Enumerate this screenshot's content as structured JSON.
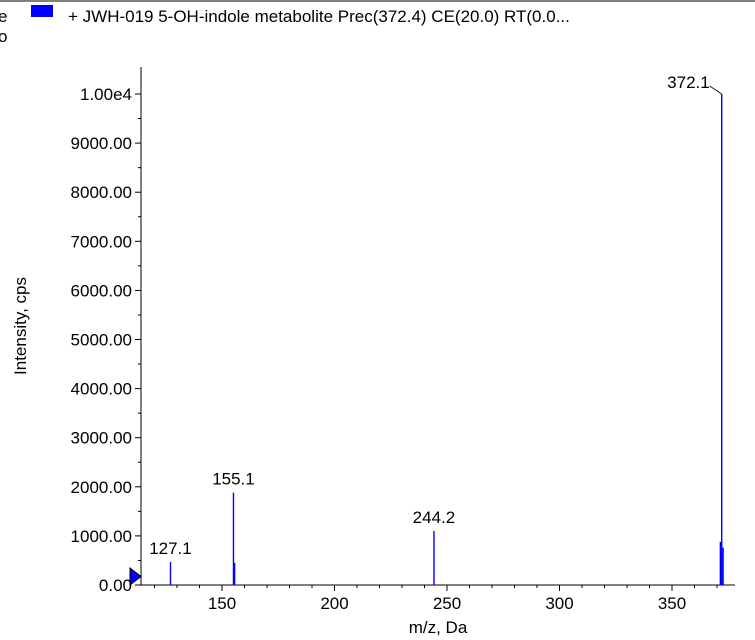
{
  "legend": {
    "left_fragment_1": "e",
    "left_fragment_2": "o",
    "series_label": "+ JWH-019 5-OH-indole metabolite Prec(372.4) CE(20.0) RT(0.0...",
    "series_color": "#0000ff"
  },
  "chart_data": {
    "type": "bar",
    "xlabel": "m/z, Da",
    "ylabel": "Intensity, cps",
    "xlim": [
      114,
      378
    ],
    "ylim": [
      0,
      10000
    ],
    "x_ticks": [
      150,
      200,
      250,
      300,
      350
    ],
    "x_tick_labels": [
      "150",
      "200",
      "250",
      "300",
      "350"
    ],
    "y_ticks": [
      0,
      1000,
      2000,
      3000,
      4000,
      5000,
      6000,
      7000,
      8000,
      9000,
      10000
    ],
    "y_tick_labels": [
      "0.00",
      "1000.00",
      "2000.00",
      "3000.00",
      "4000.00",
      "5000.00",
      "6000.00",
      "7000.00",
      "8000.00",
      "9000.00",
      "1.00e4"
    ],
    "grid": false,
    "series": [
      {
        "color": "#0000ff",
        "x": [
          127.1,
          155.1,
          155.6,
          244.2,
          371.5,
          372.1,
          372.7
        ],
        "values": [
          470,
          1880,
          450,
          1100,
          880,
          10000,
          760
        ]
      }
    ],
    "peak_labels": [
      {
        "x": 127.1,
        "y": 470,
        "text": "127.1"
      },
      {
        "x": 155.1,
        "y": 1880,
        "text": "155.1"
      },
      {
        "x": 244.2,
        "y": 1100,
        "text": "244.2"
      },
      {
        "x": 372.1,
        "y": 10000,
        "text": "372.1"
      }
    ]
  }
}
